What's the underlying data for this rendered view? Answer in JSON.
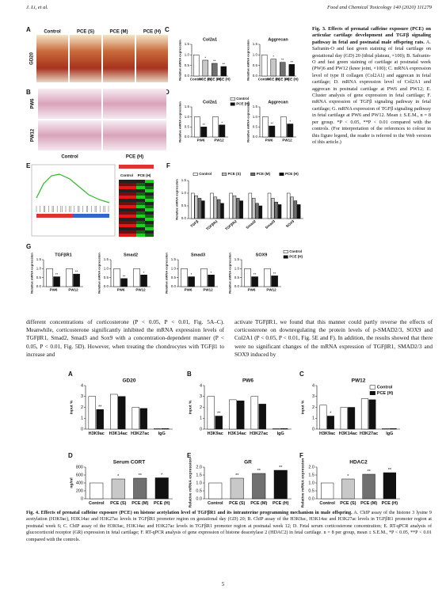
{
  "header": {
    "left": "J. Li, et al.",
    "right": "Food and Chemical Toxicology 140 (2020) 111279"
  },
  "figure3": {
    "panel_labels": [
      "A",
      "B",
      "C",
      "D",
      "E",
      "F",
      "G"
    ],
    "a": {
      "columns": [
        "Control",
        "PCE (S)",
        "PCE (M)",
        "PCE (H)"
      ],
      "row": "GD20"
    },
    "b": {
      "rows": [
        "PW6",
        "PW12"
      ],
      "columns": [
        "Control",
        "PCE (H)"
      ]
    },
    "e": {
      "heatmap_columns": [
        "Control",
        "PCE (H)"
      ]
    },
    "c": [
      {
        "title": "Col2a1",
        "ylabel": "Relative mRNA expression",
        "categories": [
          "Control",
          "PCE (S)",
          "PCE (M)",
          "PCE (H)"
        ],
        "values": [
          1.0,
          0.75,
          0.6,
          0.45
        ],
        "colors": [
          "#ffffff",
          "#c8c8c8",
          "#707070",
          "#111111"
        ],
        "stars": [
          null,
          "*",
          "**",
          "**"
        ],
        "ylim": [
          0,
          1.5
        ],
        "yticks": [
          {
            "value": 0,
            "label": "0.0"
          },
          0.5,
          {
            "value": 1,
            "label": "1.0"
          },
          1.5
        ]
      },
      {
        "title": "Aggrecan",
        "ylabel": "Relative mRNA expression",
        "categories": [
          "Control",
          "PCE (S)",
          "PCE (M)",
          "PCE (H)"
        ],
        "values": [
          1.0,
          0.8,
          0.65,
          0.55
        ],
        "colors": [
          "#ffffff",
          "#c8c8c8",
          "#707070",
          "#111111"
        ],
        "stars": [
          null,
          "*",
          "**",
          "**"
        ],
        "ylim": [
          0,
          1.5
        ],
        "yticks": [
          {
            "value": 0,
            "label": "0.0"
          },
          0.5,
          {
            "value": 1,
            "label": "1.0"
          },
          1.5
        ]
      }
    ],
    "d": [
      {
        "title": "Col2a1",
        "ylabel": "Relative mRNA expression",
        "categories": [
          "PW6",
          "PW12"
        ],
        "legend": "right",
        "series": [
          {
            "name": "Control",
            "color": "#ffffff",
            "values": [
              1.0,
              1.0
            ],
            "stars": [
              null,
              null
            ]
          },
          {
            "name": "PCE (H)",
            "color": "#111111",
            "values": [
              0.5,
              0.6
            ],
            "stars": [
              "**",
              "*"
            ]
          }
        ],
        "ylim": [
          0,
          1.5
        ],
        "yticks": [
          {
            "value": 0,
            "label": "0.0"
          },
          0.5,
          {
            "value": 1,
            "label": "1.0"
          },
          1.5
        ]
      },
      {
        "title": "Aggrecan",
        "ylabel": "Relative mRNA expression",
        "categories": [
          "PW6",
          "PW12"
        ],
        "series": [
          {
            "name": "Control",
            "color": "#ffffff",
            "values": [
              1.0,
              1.0
            ],
            "stars": [
              null,
              null
            ]
          },
          {
            "name": "PCE (H)",
            "color": "#111111",
            "values": [
              0.55,
              0.65
            ],
            "stars": [
              "**",
              "*"
            ]
          }
        ],
        "ylim": [
          0,
          1.5
        ],
        "yticks": [
          {
            "value": 0,
            "label": "0.0"
          },
          0.5,
          {
            "value": 1,
            "label": "1.0"
          },
          1.5
        ]
      }
    ],
    "f": {
      "ylabel": "Relative mRNA expression",
      "categories": [
        "TGFβ",
        "TGFβR1",
        "TGFβR2",
        "Smad2",
        "Smad3",
        "SOX9"
      ],
      "legend": "top",
      "series": [
        {
          "name": "Control",
          "color": "#ffffff",
          "values": [
            1.0,
            1.0,
            1.0,
            1.0,
            1.0,
            1.0
          ]
        },
        {
          "name": "PCE (S)",
          "color": "#c8c8c8",
          "values": [
            0.9,
            0.85,
            0.9,
            0.8,
            0.8,
            0.85
          ]
        },
        {
          "name": "PCE (M)",
          "color": "#707070",
          "values": [
            0.8,
            0.75,
            0.8,
            0.6,
            0.65,
            0.7
          ]
        },
        {
          "name": "PCE (H)",
          "color": "#111111",
          "values": [
            0.7,
            0.6,
            0.7,
            0.5,
            0.55,
            0.55
          ]
        }
      ],
      "ylim": [
        0,
        1.5
      ],
      "yticks": [
        {
          "value": 0,
          "label": "0.0"
        },
        0.5,
        {
          "value": 1,
          "label": "1.0"
        },
        1.5
      ]
    },
    "g": [
      {
        "title": "TGFβR1",
        "ylabel": "Relative mRNA expression",
        "categories": [
          "PW6",
          "PW12"
        ],
        "series": [
          {
            "name": "Control",
            "color": "#ffffff",
            "values": [
              1.0,
              1.0
            ],
            "stars": [
              null,
              null
            ]
          },
          {
            "name": "PCE (H)",
            "color": "#111111",
            "values": [
              0.55,
              0.7
            ],
            "stars": [
              "**",
              "**"
            ]
          }
        ],
        "ylim": [
          0,
          1.5
        ],
        "yticks": [
          {
            "value": 0,
            "label": "0.0"
          },
          0.5,
          {
            "value": 1,
            "label": "1.0"
          },
          1.5
        ]
      },
      {
        "title": "Smad2",
        "ylabel": "Relative mRNA expression",
        "categories": [
          "PW6",
          "PW12"
        ],
        "series": [
          {
            "name": "Control",
            "color": "#ffffff",
            "values": [
              1.0,
              1.0
            ],
            "stars": [
              null,
              null
            ]
          },
          {
            "name": "PCE (H)",
            "color": "#111111",
            "values": [
              0.45,
              0.65
            ],
            "stars": [
              "**",
              "*"
            ]
          }
        ],
        "ylim": [
          0,
          1.5
        ],
        "yticks": [
          {
            "value": 0,
            "label": "0.0"
          },
          0.5,
          {
            "value": 1,
            "label": "1.0"
          },
          1.5
        ]
      },
      {
        "title": "Smad3",
        "ylabel": "Relative mRNA expression",
        "categories": [
          "PW6",
          "PW12"
        ],
        "series": [
          {
            "name": "Control",
            "color": "#ffffff",
            "values": [
              1.0,
              1.0
            ],
            "stars": [
              null,
              null
            ]
          },
          {
            "name": "PCE (H)",
            "color": "#111111",
            "values": [
              0.55,
              0.65
            ],
            "stars": [
              "*",
              "*"
            ]
          }
        ],
        "ylim": [
          0,
          1.5
        ],
        "yticks": [
          {
            "value": 0,
            "label": "0.0"
          },
          0.5,
          {
            "value": 1,
            "label": "1.0"
          },
          1.5
        ]
      },
      {
        "title": "SOX9",
        "ylabel": "Relative mRNA expression",
        "categories": [
          "PW6",
          "PW12"
        ],
        "legend": "right",
        "series": [
          {
            "name": "Control",
            "color": "#ffffff",
            "values": [
              1.0,
              1.0
            ],
            "stars": [
              null,
              null
            ]
          },
          {
            "name": "PCE (H)",
            "color": "#111111",
            "values": [
              0.55,
              0.6
            ],
            "stars": [
              "**",
              "**"
            ]
          }
        ],
        "ylim": [
          0,
          1.5
        ],
        "yticks": [
          {
            "value": 0,
            "label": "0.0"
          },
          0.5,
          {
            "value": 1,
            "label": "1.0"
          },
          1.5
        ]
      }
    ],
    "caption": {
      "label": "Fig. 3.",
      "title": "Effects of prenatal caffeine exposure (PCE) on articular cartilage development and TGFβ signaling pathway in fetal and postnatal male offspring rats.",
      "text": "A. Safranin-O and fast green staining of fetal cartilage on gestational day (GD) 20 (tibial plateau, ×100); B. Safranin-O and fast green staining of cartilage at postnatal week (PW)6 and PW12 (knee joint, ×100); C. mRNA expression level of type II collagen (Col2A1) and aggrecan in fetal cartilage; D. mRNA expression level of Col2A1 and aggrecan in postnatal cartilage at PW6 and PW12; E. Cluster analysis of gene expression in fetal cartilage; F. mRNA expression of TGFβ signaling pathway in fetal cartilage; G. mRNA expression of TGFβ signaling pathway in fetal cartilage at PW6 and PW12. Mean ± S.E.M., n = 8 per group. *P < 0.05, **P < 0.01 compared with the controls. (For interpretation of the references to colour in this figure legend, the reader is referred to the Web version of this article.)"
    }
  },
  "body": {
    "left": "different concentrations of corticosterone (P < 0.05, P < 0.01, Fig. 5A–C). Meanwhile, corticosterone significantly inhibited the mRNA expression levels of TGFβR1, Smad2, Smad3 and Sox9 with a concentration-dependent manner (P < 0.05, P < 0.01, Fig. 5D). However, when treating the chondrocytes with TGFβ1 to increase and",
    "right": "activate TGFβR1, we found that this manner could partly reverse the effects of corticosterone on downregulating the protein levels of p-SMAD2/3, SOX9 and Col2A1 (P < 0.05, P < 0.01, Fig. 5E and F). In addition, the results showed that there were no significant changes of the mRNA expression of TGFβR1, SMAD2/3 and SOX9 induced by"
  },
  "figure4": {
    "panel_labels": [
      "A",
      "B",
      "C",
      "D",
      "E",
      "F"
    ],
    "charts": [
      {
        "title": "GD20",
        "ylabel": "Input %",
        "categories": [
          "H3K9ac",
          "H3K14ac",
          "H3K27ac",
          "IgG"
        ],
        "series": [
          {
            "name": "Control",
            "color": "#ffffff",
            "values": [
              3.0,
              3.2,
              2.0,
              0.05
            ],
            "stars": [
              null,
              null,
              null,
              null
            ]
          },
          {
            "name": "PCE (H)",
            "color": "#111111",
            "values": [
              1.8,
              3.0,
              1.9,
              0.05
            ],
            "stars": [
              "**",
              null,
              null,
              null
            ]
          }
        ],
        "ylim": [
          0,
          4
        ],
        "yticks": [
          0,
          1,
          2,
          3,
          4
        ]
      },
      {
        "title": "PW6",
        "ylabel": "Input %",
        "categories": [
          "H3K9ac",
          "H3K14ac",
          "H3K27ac",
          "IgG"
        ],
        "series": [
          {
            "name": "Control",
            "color": "#ffffff",
            "values": [
              3.0,
              2.7,
              3.0,
              0.05
            ],
            "stars": [
              null,
              null,
              null,
              null
            ]
          },
          {
            "name": "PCE (H)",
            "color": "#111111",
            "values": [
              1.2,
              2.6,
              2.3,
              0.05
            ],
            "stars": [
              "**",
              null,
              null,
              null
            ]
          }
        ],
        "ylim": [
          0,
          4
        ],
        "yticks": [
          0,
          1,
          2,
          3,
          4
        ]
      },
      {
        "title": "PW12",
        "ylabel": "Input %",
        "categories": [
          "H3K9ac",
          "H3K14ac",
          "H3K27ac",
          "IgG"
        ],
        "legend": "top-right",
        "series": [
          {
            "name": "Control",
            "color": "#ffffff",
            "values": [
              2.2,
              2.0,
              2.8,
              0.05
            ],
            "stars": [
              null,
              null,
              null,
              null
            ]
          },
          {
            "name": "PCE (H)",
            "color": "#111111",
            "values": [
              1.2,
              2.0,
              2.7,
              0.05
            ],
            "stars": [
              "*",
              null,
              null,
              null
            ]
          }
        ],
        "ylim": [
          0,
          4
        ],
        "yticks": [
          0,
          1,
          2,
          3,
          4
        ]
      },
      {
        "title": "Serum CORT",
        "ylabel": "ng/ml",
        "categories": [
          "Control",
          "PCE (S)",
          "PCE (M)",
          "PCE (H)"
        ],
        "values": [
          400,
          500,
          520,
          530
        ],
        "colors": [
          "#ffffff",
          "#c8c8c8",
          "#707070",
          "#111111"
        ],
        "stars": [
          null,
          "*",
          "**",
          "*"
        ],
        "ylim": [
          0,
          800
        ],
        "yticks": [
          0,
          200,
          400,
          600,
          800
        ]
      },
      {
        "title": "GR",
        "ylabel": "Relative mRNA expression",
        "categories": [
          "Control",
          "PCE (S)",
          "PCE (M)",
          "PCE (H)"
        ],
        "values": [
          1.0,
          1.3,
          1.6,
          1.8
        ],
        "colors": [
          "#ffffff",
          "#c8c8c8",
          "#707070",
          "#111111"
        ],
        "stars": [
          null,
          "**",
          "**",
          "**"
        ],
        "ylim": [
          0,
          2
        ],
        "yticks": [
          {
            "value": 0,
            "label": "0.0"
          },
          0.5,
          {
            "value": 1,
            "label": "1.0"
          },
          1.5,
          {
            "value": 2,
            "label": "2.0"
          }
        ]
      },
      {
        "title": "HDAC2",
        "ylabel": "Relative mRNA expression",
        "categories": [
          "Control",
          "PCE (S)",
          "PCE (M)",
          "PCE (H)"
        ],
        "values": [
          1.0,
          1.25,
          1.55,
          1.65
        ],
        "colors": [
          "#ffffff",
          "#c8c8c8",
          "#707070",
          "#111111"
        ],
        "stars": [
          null,
          "*",
          "**",
          "**"
        ],
        "ylim": [
          0,
          2
        ],
        "yticks": [
          {
            "value": 0,
            "label": "0.0"
          },
          0.5,
          {
            "value": 1,
            "label": "1.0"
          },
          1.5,
          {
            "value": 2,
            "label": "2.0"
          }
        ]
      }
    ],
    "caption": {
      "label": "Fig. 4.",
      "title": "Effects of prenatal caffeine exposure (PCE) on histone acetylation level of TGFβR1 and its intrauterine programming mechanism in male offspring.",
      "text": "A. ChIP assay of the histone 3 lysine 9 acetylation (H3K9ac), H3K14ac and H3K27ac levels in TGFβR1 promoter region on gestational day (GD) 20; B. ChIP assay of the H3K9ac, H3K14ac and H3K27ac levels in TGFβR1 promoter region at postnatal week 6; C. ChIP assay of the H3K9ac, H3K14ac and H3K27ac levels in TGFβR1 promoter region at postnatal week 12; D. Fetal serum corticosterone concentration; E. RT-qPCR analysis of glucocorticoid receptor (GR) expression in fetal cartilage; F. RT-qPCR analysis of gene expression of histone deacetylase 2 (HDAC2) in fetal cartilage. n = 8 per group, mean ± S.E.M., *P < 0.05, **P < 0.01 compared with the controls."
    }
  },
  "page_number": "5"
}
